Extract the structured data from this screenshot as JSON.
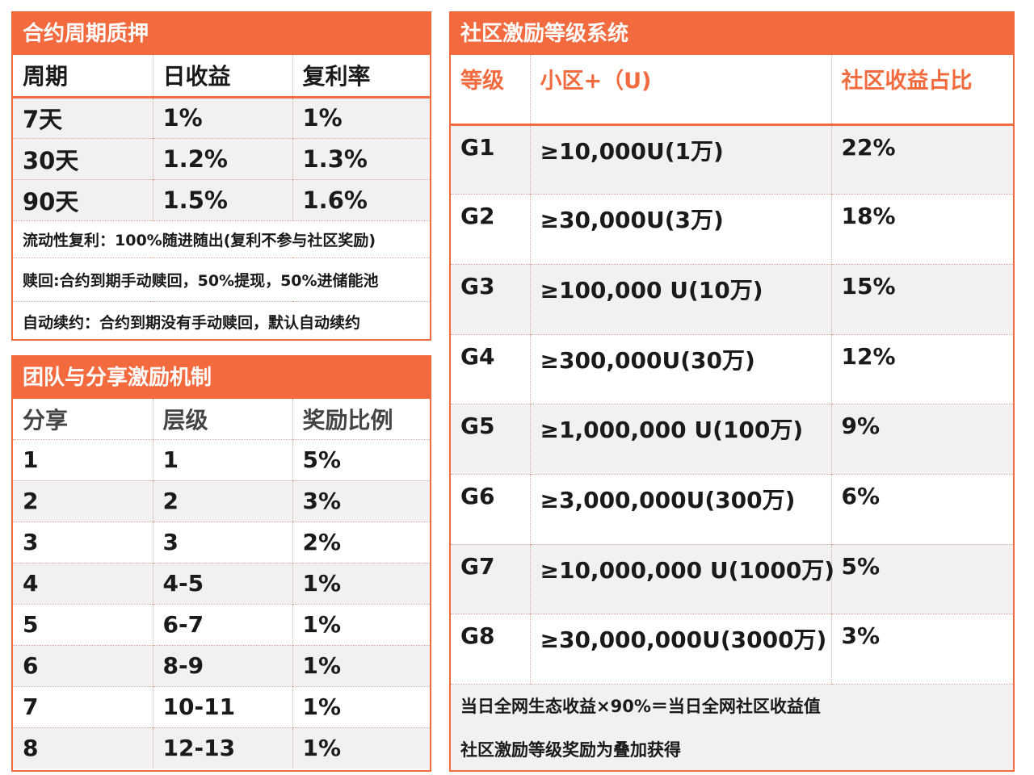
{
  "contract": {
    "title": "合约周期质押",
    "headers": [
      "周期",
      "日收益",
      "复利率"
    ],
    "rows": [
      [
        "7天",
        "1%",
        "1%"
      ],
      [
        "30天",
        "1.2%",
        "1.3%"
      ],
      [
        "90天",
        "1.5%",
        "1.6%"
      ]
    ],
    "notes": [
      "流动性复利：100%随进随出(复利不参与社区奖励)",
      "赎回:合约到期手动赎回，50%提现，50%进储能池",
      "自动续约：合约到期没有手动赎回，默认自动续约"
    ]
  },
  "team": {
    "title": "团队与分享激励机制",
    "headers": [
      "分享",
      "层级",
      "奖励比例"
    ],
    "rows": [
      [
        "1",
        "1",
        "5%"
      ],
      [
        "2",
        "2",
        "3%"
      ],
      [
        "3",
        "3",
        "2%"
      ],
      [
        "4",
        "4-5",
        "1%"
      ],
      [
        "5",
        "6-7",
        "1%"
      ],
      [
        "6",
        "8-9",
        "1%"
      ],
      [
        "7",
        "10-11",
        "1%"
      ],
      [
        "8",
        "12-13",
        "1%"
      ]
    ]
  },
  "community": {
    "title": "社区激励等级系统",
    "headers": [
      "等级",
      "小区+（U)",
      "社区收益占比"
    ],
    "rows": [
      [
        "G1",
        "≥10,000U(1万)",
        "22%"
      ],
      [
        "G2",
        "≥30,000U(3万)",
        "18%"
      ],
      [
        "G3",
        "≥100,000 U(10万)",
        "15%"
      ],
      [
        "G4",
        "≥300,000U(30万)",
        "12%"
      ],
      [
        "G5",
        "≥1,000,000 U(100万)",
        "9%"
      ],
      [
        "G6",
        "≥3,000,000U(300万)",
        "6%"
      ],
      [
        "G7",
        "≥10,000,000 U(1000万)",
        "5%"
      ],
      [
        "G8",
        "≥30,000,000U(3000万)",
        "3%"
      ]
    ],
    "notes": [
      "当日全网生态收益×90%＝当日全网社区收益值",
      "社区激励等级奖励为叠加获得"
    ]
  },
  "colors": {
    "accent": "#f26a3d",
    "alt_row": "#f1f1f1"
  }
}
